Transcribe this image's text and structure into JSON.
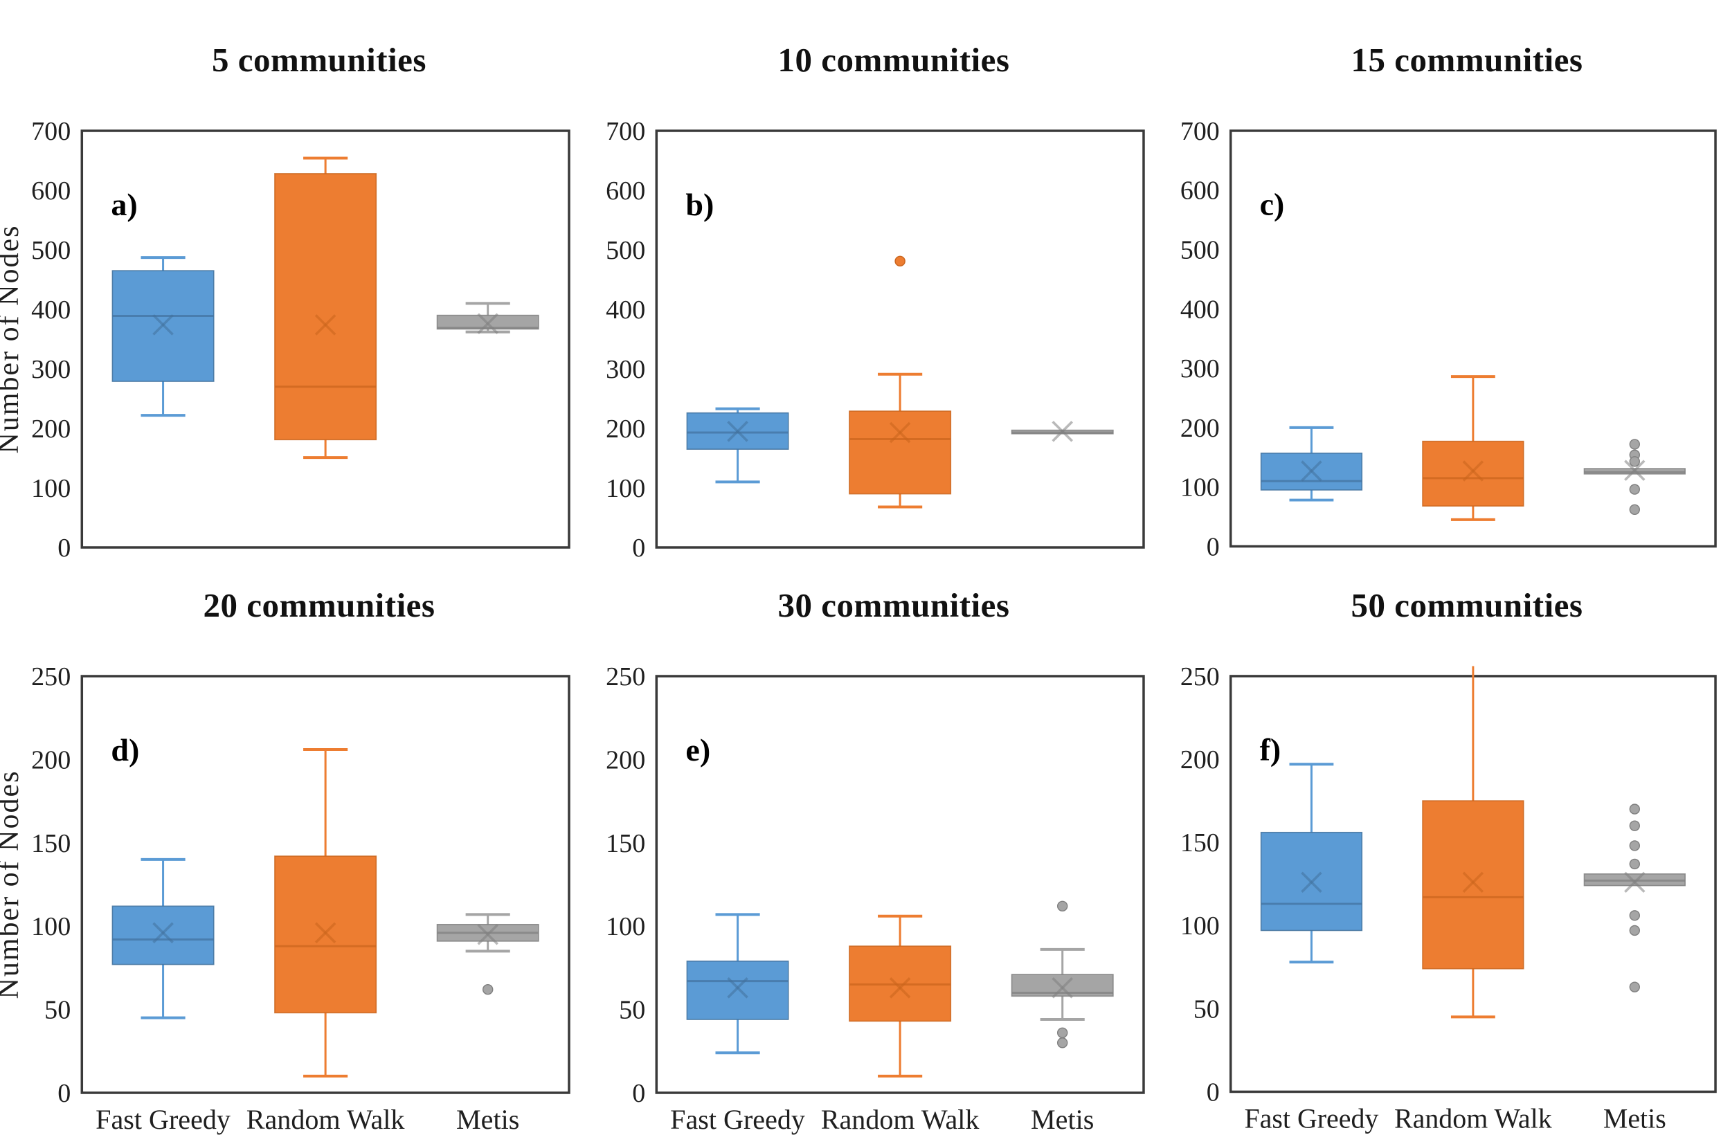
{
  "figure": {
    "ylabel": "Number of Nodes",
    "categories": [
      "Fast Greedy",
      "Random Walk",
      "Metis"
    ],
    "colors": {
      "fast_greedy_fill": "#5B9BD5",
      "fast_greedy_stroke": "#41719C",
      "random_walk_fill": "#ED7D31",
      "random_walk_stroke": "#C9641C",
      "metis_fill": "#A5A5A5",
      "metis_stroke": "#7F7F7F",
      "frame": "#3a3a3a",
      "text": "#1f1f1f"
    }
  },
  "chart_data": [
    {
      "type": "box",
      "title": "5 communities",
      "label": "a)",
      "ylim": [
        0,
        700
      ],
      "ytick_step": 100,
      "show_xlabels": false,
      "show_ylabel": true,
      "series": [
        {
          "name": "Fast Greedy",
          "fill": "#5B9BD5",
          "stroke": "#41719C",
          "whisker_low": 222,
          "q1": 279,
          "median": 389,
          "mean": 374,
          "q3": 465,
          "whisker_high": 487,
          "outliers": []
        },
        {
          "name": "Random Walk",
          "fill": "#ED7D31",
          "stroke": "#C9641C",
          "whisker_low": 151,
          "q1": 181,
          "median": 270,
          "mean": 374,
          "q3": 628,
          "whisker_high": 654,
          "outliers": []
        },
        {
          "name": "Metis",
          "fill": "#A5A5A5",
          "stroke": "#7F7F7F",
          "whisker_low": 362,
          "q1": 367,
          "median": 369,
          "mean": 376,
          "q3": 390,
          "whisker_high": 410,
          "outliers": []
        }
      ]
    },
    {
      "type": "box",
      "title": "10 communities",
      "label": "b)",
      "ylim": [
        0,
        700
      ],
      "ytick_step": 100,
      "show_xlabels": false,
      "show_ylabel": false,
      "series": [
        {
          "name": "Fast Greedy",
          "fill": "#5B9BD5",
          "stroke": "#41719C",
          "whisker_low": 110,
          "q1": 165,
          "median": 193,
          "mean": 195,
          "q3": 226,
          "whisker_high": 233,
          "outliers": []
        },
        {
          "name": "Random Walk",
          "fill": "#ED7D31",
          "stroke": "#C9641C",
          "whisker_low": 68,
          "q1": 90,
          "median": 182,
          "mean": 193,
          "q3": 229,
          "whisker_high": 291,
          "outliers": [
            481
          ]
        },
        {
          "name": "Metis",
          "fill": "#A5A5A5",
          "stroke": "#7F7F7F",
          "whisker_low": 191,
          "q1": 191,
          "median": 193,
          "mean": 195,
          "q3": 197,
          "whisker_high": 197,
          "outliers": []
        }
      ]
    },
    {
      "type": "box",
      "title": "15 communities",
      "label": "c)",
      "ylim": [
        0,
        700
      ],
      "ytick_step": 100,
      "show_xlabels": false,
      "show_ylabel": false,
      "series": [
        {
          "name": "Fast Greedy",
          "fill": "#5B9BD5",
          "stroke": "#41719C",
          "whisker_low": 78,
          "q1": 95,
          "median": 110,
          "mean": 127,
          "q3": 157,
          "whisker_high": 200,
          "outliers": []
        },
        {
          "name": "Random Walk",
          "fill": "#ED7D31",
          "stroke": "#C9641C",
          "whisker_low": 45,
          "q1": 68,
          "median": 115,
          "mean": 127,
          "q3": 177,
          "whisker_high": 286,
          "outliers": []
        },
        {
          "name": "Metis",
          "fill": "#A5A5A5",
          "stroke": "#7F7F7F",
          "whisker_low": 122,
          "q1": 122,
          "median": 125,
          "mean": 128,
          "q3": 131,
          "whisker_high": 131,
          "outliers": [
            172,
            154,
            143,
            96,
            62
          ]
        }
      ]
    },
    {
      "type": "box",
      "title": "20 communities",
      "label": "d)",
      "ylim": [
        0,
        250
      ],
      "ytick_step": 50,
      "show_xlabels": true,
      "show_ylabel": true,
      "series": [
        {
          "name": "Fast Greedy",
          "fill": "#5B9BD5",
          "stroke": "#41719C",
          "whisker_low": 45,
          "q1": 77,
          "median": 92,
          "mean": 96,
          "q3": 112,
          "whisker_high": 140,
          "outliers": []
        },
        {
          "name": "Random Walk",
          "fill": "#ED7D31",
          "stroke": "#C9641C",
          "whisker_low": 10,
          "q1": 48,
          "median": 88,
          "mean": 96,
          "q3": 142,
          "whisker_high": 206,
          "outliers": []
        },
        {
          "name": "Metis",
          "fill": "#A5A5A5",
          "stroke": "#7F7F7F",
          "whisker_low": 85,
          "q1": 91,
          "median": 96,
          "mean": 95,
          "q3": 101,
          "whisker_high": 107,
          "outliers": [
            62
          ]
        }
      ]
    },
    {
      "type": "box",
      "title": "30 communities",
      "label": "e)",
      "ylim": [
        0,
        250
      ],
      "ytick_step": 50,
      "show_xlabels": true,
      "show_ylabel": false,
      "series": [
        {
          "name": "Fast Greedy",
          "fill": "#5B9BD5",
          "stroke": "#41719C",
          "whisker_low": 24,
          "q1": 44,
          "median": 67,
          "mean": 63,
          "q3": 79,
          "whisker_high": 107,
          "outliers": []
        },
        {
          "name": "Random Walk",
          "fill": "#ED7D31",
          "stroke": "#C9641C",
          "whisker_low": 10,
          "q1": 43,
          "median": 65,
          "mean": 63,
          "q3": 88,
          "whisker_high": 106,
          "outliers": []
        },
        {
          "name": "Metis",
          "fill": "#A5A5A5",
          "stroke": "#7F7F7F",
          "whisker_low": 44,
          "q1": 58,
          "median": 60,
          "mean": 63,
          "q3": 71,
          "whisker_high": 86,
          "outliers": [
            112,
            36,
            30
          ]
        }
      ]
    },
    {
      "type": "box",
      "title": "50 communities",
      "label": "f)",
      "ylim": [
        0,
        250
      ],
      "ytick_step": 50,
      "show_xlabels": true,
      "show_ylabel": false,
      "series": [
        {
          "name": "Fast Greedy",
          "fill": "#5B9BD5",
          "stroke": "#41719C",
          "whisker_low": 78,
          "q1": 97,
          "median": 113,
          "mean": 126,
          "q3": 156,
          "whisker_high": 197,
          "outliers": []
        },
        {
          "name": "Random Walk",
          "fill": "#ED7D31",
          "stroke": "#C9641C",
          "whisker_low": 45,
          "q1": 74,
          "median": 117,
          "mean": 126,
          "q3": 175,
          "whisker_high": 256,
          "outliers": []
        },
        {
          "name": "Metis",
          "fill": "#A5A5A5",
          "stroke": "#7F7F7F",
          "whisker_low": 124,
          "q1": 124,
          "median": 127,
          "mean": 126,
          "q3": 131,
          "whisker_high": 131,
          "outliers": [
            170,
            160,
            148,
            137,
            106,
            97,
            63
          ]
        }
      ]
    }
  ]
}
